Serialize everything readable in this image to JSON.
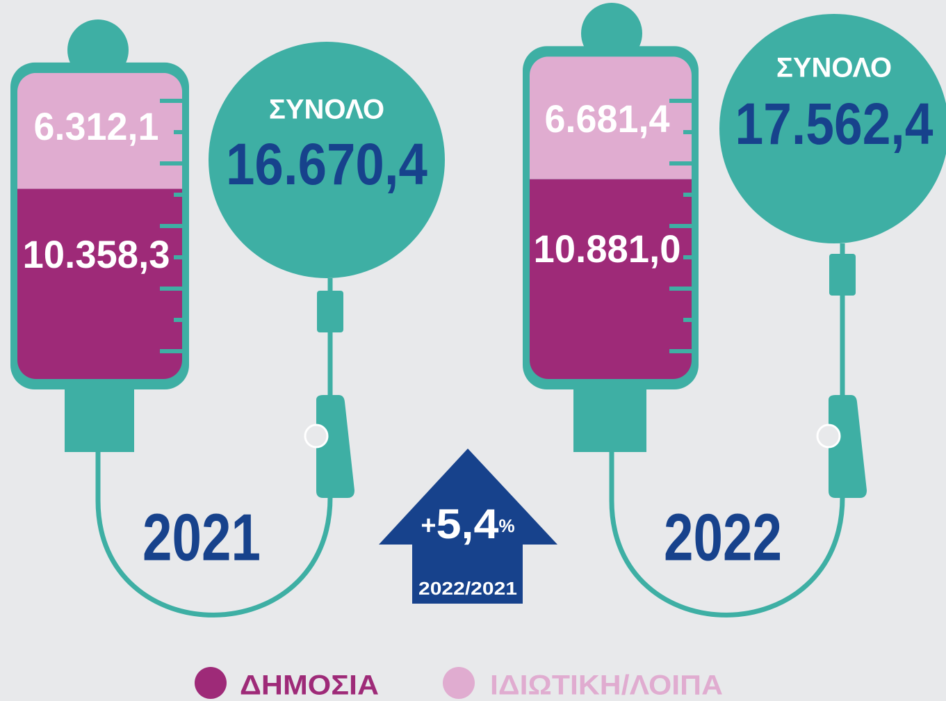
{
  "chart_data": {
    "type": "iv-bags",
    "categories": [
      "2021",
      "2022"
    ],
    "series": [
      {
        "name": "ΔΗΜΟΣΙΑ",
        "color": "#9e2a78",
        "values": [
          10358.3,
          10881.0
        ],
        "value_labels": [
          "10.358,3",
          "10.881,0"
        ]
      },
      {
        "name": "ΙΔΙΩΤΙΚΗ/ΛΟΙΠΑ",
        "color": "#e0acd0",
        "values": [
          6312.1,
          6681.4
        ],
        "value_labels": [
          "6.312,1",
          "6.681,4"
        ]
      }
    ],
    "total_title": "ΣΥΝΟΛΟ",
    "totals": [
      16670.4,
      17562.4
    ],
    "total_labels": [
      "16.670,4",
      "17.562,4"
    ],
    "change": {
      "sign": "+",
      "value": "5,4",
      "unit": "%",
      "period": "2022/2021"
    }
  }
}
